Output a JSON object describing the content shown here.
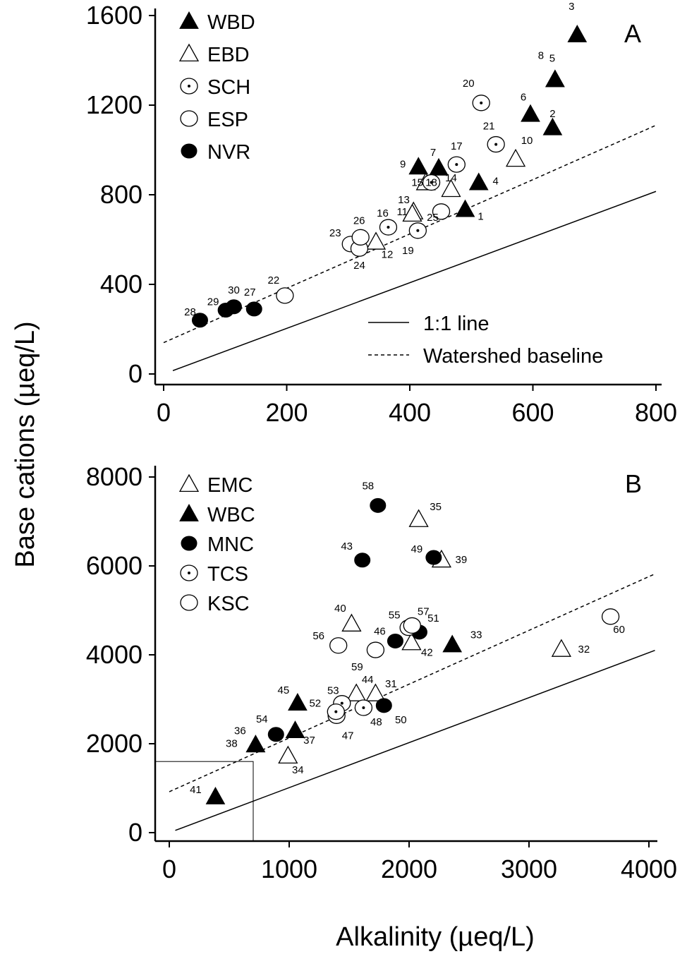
{
  "y_axis_label": "Base cations (µeq/L)",
  "x_axis_label": "Alkalinity (µeq/L)",
  "colors": {
    "ink": "#000000",
    "background": "#ffffff"
  },
  "chart_data": [
    {
      "type": "scatter",
      "panel_label": "A",
      "xlim": [
        0,
        800
      ],
      "ylim": [
        0,
        1600
      ],
      "x_ticks": [
        "0",
        "200",
        "400",
        "600",
        "800"
      ],
      "y_ticks": [
        "0",
        "400",
        "800",
        "1200",
        "1600"
      ],
      "legend_position": "top-left",
      "line_legend_position": "bottom-right",
      "series": [
        {
          "name": "WBD",
          "marker": "filled-triangle",
          "points": [
            {
              "label": "1",
              "x": 490,
              "y": 735
            },
            {
              "label": "2",
              "x": 632,
              "y": 1100
            },
            {
              "label": "3",
              "x": 672,
              "y": 1515
            },
            {
              "label": "4",
              "x": 512,
              "y": 855
            },
            {
              "label": "5",
              "x": 636,
              "y": 1315
            },
            {
              "label": "6",
              "x": 596,
              "y": 1160
            },
            {
              "label": "7",
              "x": 447,
              "y": 920
            },
            {
              "label": "8",
              "x": 636,
              "y": 1315
            },
            {
              "label": "9",
              "x": 414,
              "y": 925
            }
          ]
        },
        {
          "name": "EBD",
          "marker": "open-triangle",
          "points": [
            {
              "label": "10",
              "x": 572,
              "y": 960
            },
            {
              "label": "11",
              "x": 406,
              "y": 725
            },
            {
              "label": "12",
              "x": 345,
              "y": 590
            },
            {
              "label": "13",
              "x": 404,
              "y": 715
            },
            {
              "label": "14",
              "x": 467,
              "y": 825
            },
            {
              "label": "15",
              "x": 426,
              "y": 855
            }
          ]
        },
        {
          "name": "SCH",
          "marker": "dotted-circle",
          "points": [
            {
              "label": "16",
              "x": 365,
              "y": 655
            },
            {
              "label": "17",
              "x": 476,
              "y": 935
            },
            {
              "label": "18",
              "x": 435,
              "y": 855
            },
            {
              "label": "19",
              "x": 413,
              "y": 640
            },
            {
              "label": "20",
              "x": 516,
              "y": 1210
            },
            {
              "label": "21",
              "x": 540,
              "y": 1025
            }
          ]
        },
        {
          "name": "ESP",
          "marker": "open-circle",
          "points": [
            {
              "label": "22",
              "x": 197,
              "y": 350
            },
            {
              "label": "23",
              "x": 304,
              "y": 580
            },
            {
              "label": "24",
              "x": 318,
              "y": 560
            },
            {
              "label": "25",
              "x": 451,
              "y": 725
            },
            {
              "label": "26",
              "x": 320,
              "y": 610
            }
          ]
        },
        {
          "name": "NVR",
          "marker": "filled-circle",
          "points": [
            {
              "label": "27",
              "x": 147,
              "y": 290
            },
            {
              "label": "28",
              "x": 59,
              "y": 240
            },
            {
              "label": "29",
              "x": 101,
              "y": 285
            },
            {
              "label": "30",
              "x": 114,
              "y": 300
            }
          ]
        }
      ],
      "lines": [
        {
          "name": "1:1 line",
          "style": "solid",
          "x": [
            15,
            800
          ],
          "y": [
            15,
            815
          ]
        },
        {
          "name": "Watershed baseline",
          "style": "dashed",
          "x": [
            0,
            800
          ],
          "y": [
            140,
            1110
          ]
        }
      ]
    },
    {
      "type": "scatter",
      "panel_label": "B",
      "xlim": [
        0,
        4000
      ],
      "ylim": [
        0,
        8000
      ],
      "x_ticks": [
        "0",
        "1000",
        "2000",
        "3000",
        "4000"
      ],
      "y_ticks": [
        "0",
        "2000",
        "4000",
        "6000",
        "8000"
      ],
      "legend_position": "top-left",
      "series": [
        {
          "name": "EMC",
          "marker": "open-triangle",
          "points": [
            {
              "label": "31",
              "x": 1720,
              "y": 3130
            },
            {
              "label": "32",
              "x": 3270,
              "y": 4130
            },
            {
              "label": "34",
              "x": 990,
              "y": 1730
            },
            {
              "label": "35",
              "x": 2080,
              "y": 7050
            },
            {
              "label": "39",
              "x": 2270,
              "y": 6140
            },
            {
              "label": "40",
              "x": 1520,
              "y": 4700
            },
            {
              "label": "42",
              "x": 2020,
              "y": 4280
            },
            {
              "label": "44",
              "x": 1560,
              "y": 3130
            }
          ]
        },
        {
          "name": "WBC",
          "marker": "filled-triangle",
          "points": [
            {
              "label": "33",
              "x": 2360,
              "y": 4230
            },
            {
              "label": "36",
              "x": 720,
              "y": 1980
            },
            {
              "label": "37",
              "x": 1050,
              "y": 2300
            },
            {
              "label": "38",
              "x": 720,
              "y": 1980
            },
            {
              "label": "41",
              "x": 385,
              "y": 810
            },
            {
              "label": "45",
              "x": 1070,
              "y": 2920
            }
          ]
        },
        {
          "name": "MNC",
          "marker": "filled-circle",
          "points": [
            {
              "label": "43",
              "x": 1610,
              "y": 6130
            },
            {
              "label": "46",
              "x": 1885,
              "y": 4310
            },
            {
              "label": "49",
              "x": 2205,
              "y": 6190
            },
            {
              "label": "50",
              "x": 1790,
              "y": 2860
            },
            {
              "label": "51",
              "x": 2085,
              "y": 4510
            },
            {
              "label": "54",
              "x": 890,
              "y": 2210
            },
            {
              "label": "58",
              "x": 1740,
              "y": 7360
            }
          ]
        },
        {
          "name": "TCS",
          "marker": "dotted-circle",
          "points": [
            {
              "label": "47",
              "x": 1395,
              "y": 2630
            },
            {
              "label": "48",
              "x": 1620,
              "y": 2810
            },
            {
              "label": "52",
              "x": 1440,
              "y": 2910
            },
            {
              "label": "53",
              "x": 1390,
              "y": 2720
            }
          ]
        },
        {
          "name": "KSC",
          "marker": "open-circle",
          "points": [
            {
              "label": "55",
              "x": 1995,
              "y": 4610
            },
            {
              "label": "56",
              "x": 1410,
              "y": 4210
            },
            {
              "label": "57",
              "x": 2025,
              "y": 4660
            },
            {
              "label": "59",
              "x": 1720,
              "y": 4110
            },
            {
              "label": "60",
              "x": 3680,
              "y": 4860
            }
          ]
        }
      ],
      "lines": [
        {
          "name": "1:1 line",
          "style": "solid",
          "x": [
            50,
            4050
          ],
          "y": [
            50,
            4100
          ]
        },
        {
          "name": "Watershed baseline",
          "style": "dashed",
          "x": [
            0,
            4050
          ],
          "y": [
            920,
            5820
          ]
        }
      ],
      "inset_box": {
        "x": [
          0,
          700
        ],
        "y": [
          0,
          1600
        ]
      }
    }
  ]
}
